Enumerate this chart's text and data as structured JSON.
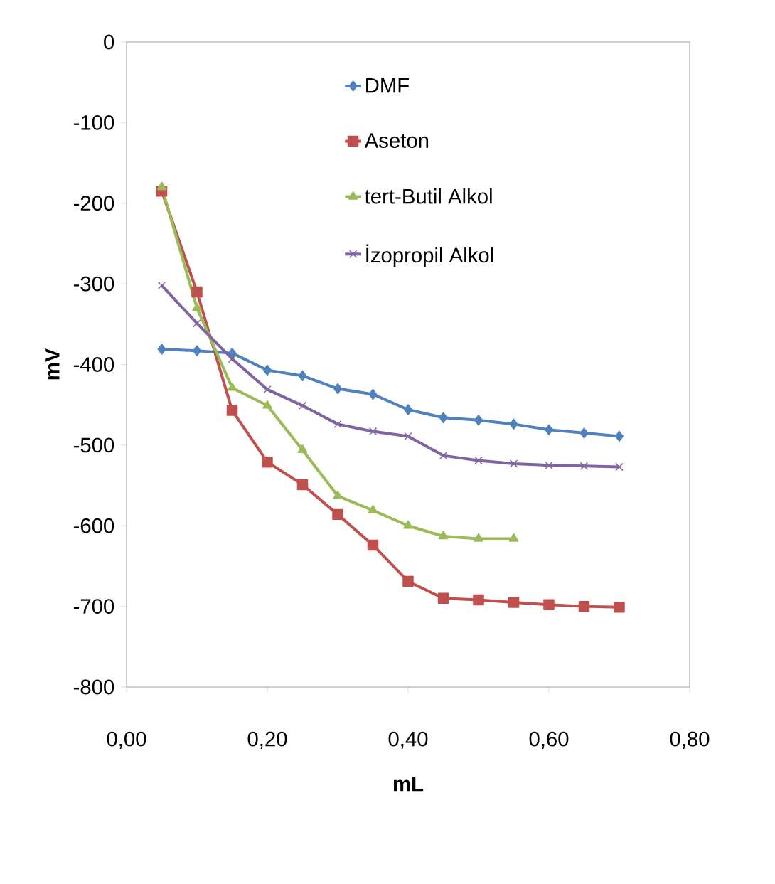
{
  "chart_data": {
    "type": "line",
    "xlabel": "mL",
    "ylabel": "mV",
    "xlim": [
      0,
      0.8
    ],
    "ylim": [
      -800,
      0
    ],
    "xticks": [
      {
        "value": 0,
        "label": "0,00"
      },
      {
        "value": 0.2,
        "label": "0,20"
      },
      {
        "value": 0.4,
        "label": "0,40"
      },
      {
        "value": 0.6,
        "label": "0,60"
      },
      {
        "value": 0.8,
        "label": "0,80"
      }
    ],
    "yticks": [
      -800,
      -700,
      -600,
      -500,
      -400,
      -300,
      -200,
      -100,
      0
    ],
    "grid": false,
    "legend": "top",
    "line_style": "solid",
    "series": [
      {
        "name": "DMF",
        "color": "#4f81bd",
        "marker": "diamond",
        "x": [
          0.05,
          0.1,
          0.15,
          0.2,
          0.25,
          0.3,
          0.35,
          0.4,
          0.45,
          0.5,
          0.55,
          0.6,
          0.65,
          0.7
        ],
        "values": [
          -381,
          -383,
          -386,
          -407,
          -414,
          -430,
          -437,
          -456,
          -466,
          -469,
          -474,
          -481,
          -485,
          -489
        ]
      },
      {
        "name": "Aseton",
        "color": "#c0504d",
        "marker": "square",
        "x": [
          0.05,
          0.1,
          0.15,
          0.2,
          0.25,
          0.3,
          0.35,
          0.4,
          0.45,
          0.5,
          0.55,
          0.6,
          0.65,
          0.7
        ],
        "values": [
          -185,
          -310,
          -457,
          -521,
          -549,
          -586,
          -624,
          -669,
          -690,
          -692,
          -695,
          -698,
          -700,
          -701
        ]
      },
      {
        "name": "tert-Butil Alkol",
        "color": "#9bbb59",
        "marker": "triangle",
        "x": [
          0.05,
          0.1,
          0.15,
          0.2,
          0.25,
          0.3,
          0.35,
          0.4,
          0.45,
          0.5,
          0.55
        ],
        "values": [
          -180,
          -330,
          -429,
          -451,
          -506,
          -563,
          -581,
          -600,
          -613,
          -616,
          -616
        ]
      },
      {
        "name": "İzopropil Alkol",
        "color": "#8064a2",
        "marker": "cross",
        "x": [
          0.05,
          0.1,
          0.15,
          0.2,
          0.25,
          0.3,
          0.35,
          0.4,
          0.45,
          0.5,
          0.55,
          0.6,
          0.65,
          0.7
        ],
        "values": [
          -302,
          -349,
          -393,
          -431,
          -451,
          -474,
          -483,
          -489,
          -513,
          -519,
          -523,
          -525,
          -526,
          -527
        ]
      }
    ]
  }
}
